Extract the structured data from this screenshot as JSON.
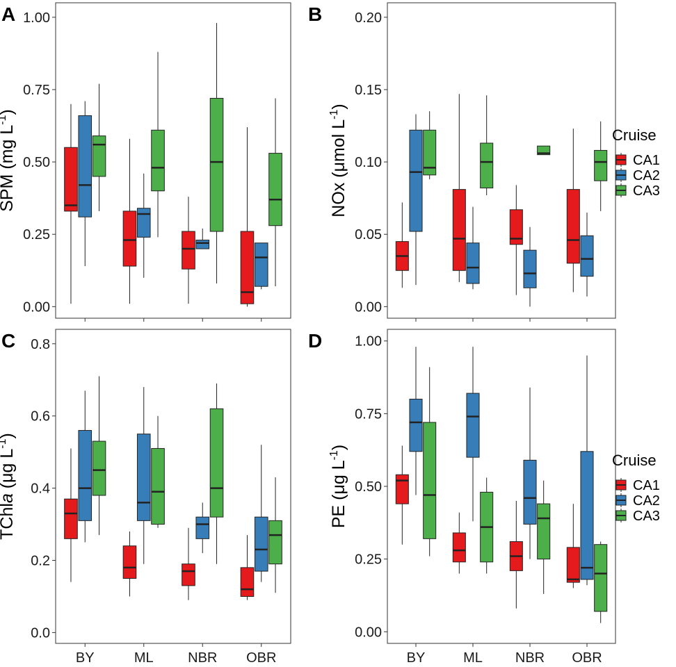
{
  "legend": {
    "title": "Cruise",
    "entries": [
      {
        "name": "CA1",
        "color": "#E41A1C"
      },
      {
        "name": "CA2",
        "color": "#377EB8"
      },
      {
        "name": "CA3",
        "color": "#4DAF4A"
      }
    ]
  },
  "chart_data": [
    {
      "type": "box",
      "panel": "A",
      "ylabel": "SPM (mg L",
      "ylabel_sup": "-1",
      "ylabel_tail": ")",
      "ylim": [
        -0.04,
        1.05
      ],
      "yticks": [
        "0.00",
        "0.25",
        "0.50",
        "0.75",
        "1.00"
      ],
      "categories": [
        "BY",
        "ML",
        "NBR",
        "OBR"
      ],
      "series": [
        {
          "name": "CA1",
          "boxes": [
            {
              "min": 0.01,
              "q1": 0.33,
              "median": 0.35,
              "q3": 0.55,
              "max": 0.7
            },
            {
              "min": 0.01,
              "q1": 0.14,
              "median": 0.23,
              "q3": 0.33,
              "max": 0.58
            },
            {
              "min": 0.01,
              "q1": 0.13,
              "median": 0.2,
              "q3": 0.26,
              "max": 0.38
            },
            {
              "min": 0.0,
              "q1": 0.01,
              "median": 0.05,
              "q3": 0.26,
              "max": 0.62
            }
          ]
        },
        {
          "name": "CA2",
          "boxes": [
            {
              "min": 0.14,
              "q1": 0.31,
              "median": 0.42,
              "q3": 0.66,
              "max": 0.71
            },
            {
              "min": 0.1,
              "q1": 0.24,
              "median": 0.32,
              "q3": 0.34,
              "max": 0.46
            },
            {
              "min": 0.2,
              "q1": 0.2,
              "median": 0.22,
              "q3": 0.23,
              "max": 0.27
            },
            {
              "min": 0.06,
              "q1": 0.07,
              "median": 0.17,
              "q3": 0.22,
              "max": 0.22
            }
          ]
        },
        {
          "name": "CA3",
          "boxes": [
            {
              "min": 0.33,
              "q1": 0.45,
              "median": 0.56,
              "q3": 0.59,
              "max": 0.77
            },
            {
              "min": 0.24,
              "q1": 0.4,
              "median": 0.48,
              "q3": 0.61,
              "max": 0.88
            },
            {
              "min": 0.08,
              "q1": 0.26,
              "median": 0.5,
              "q3": 0.72,
              "max": 0.98
            },
            {
              "min": 0.07,
              "q1": 0.28,
              "median": 0.37,
              "q3": 0.53,
              "max": 0.72
            }
          ]
        }
      ]
    },
    {
      "type": "box",
      "panel": "B",
      "ylabel": "NOx (μmol L",
      "ylabel_sup": "-1",
      "ylabel_tail": ")",
      "ylim": [
        -0.008,
        0.21
      ],
      "yticks": [
        "0.00",
        "0.05",
        "0.10",
        "0.15",
        "0.20"
      ],
      "categories": [
        "BY",
        "ML",
        "NBR",
        "OBR"
      ],
      "series": [
        {
          "name": "CA1",
          "boxes": [
            {
              "min": 0.013,
              "q1": 0.025,
              "median": 0.035,
              "q3": 0.045,
              "max": 0.072
            },
            {
              "min": 0.017,
              "q1": 0.025,
              "median": 0.047,
              "q3": 0.081,
              "max": 0.147
            },
            {
              "min": 0.008,
              "q1": 0.043,
              "median": 0.047,
              "q3": 0.067,
              "max": 0.084
            },
            {
              "min": 0.01,
              "q1": 0.03,
              "median": 0.046,
              "q3": 0.081,
              "max": 0.123
            }
          ]
        },
        {
          "name": "CA2",
          "boxes": [
            {
              "min": 0.015,
              "q1": 0.052,
              "median": 0.093,
              "q3": 0.122,
              "max": 0.133
            },
            {
              "min": 0.012,
              "q1": 0.016,
              "median": 0.027,
              "q3": 0.044,
              "max": 0.069
            },
            {
              "min": 0.0,
              "q1": 0.013,
              "median": 0.023,
              "q3": 0.039,
              "max": 0.055
            },
            {
              "min": 0.007,
              "q1": 0.021,
              "median": 0.033,
              "q3": 0.049,
              "max": 0.065
            }
          ]
        },
        {
          "name": "CA3",
          "boxes": [
            {
              "min": 0.088,
              "q1": 0.091,
              "median": 0.096,
              "q3": 0.122,
              "max": 0.135
            },
            {
              "min": 0.077,
              "q1": 0.082,
              "median": 0.1,
              "q3": 0.113,
              "max": 0.146
            },
            {
              "min": 0.105,
              "q1": 0.105,
              "median": 0.106,
              "q3": 0.111,
              "max": 0.111
            },
            {
              "min": 0.066,
              "q1": 0.087,
              "median": 0.1,
              "q3": 0.108,
              "max": 0.128
            }
          ]
        }
      ]
    },
    {
      "type": "box",
      "panel": "C",
      "ylabel": "TChl",
      "ylabel_italic": "a",
      "ylabel_unit": " (μg L",
      "ylabel_sup": "-1",
      "ylabel_tail": ")",
      "ylim": [
        -0.03,
        0.84
      ],
      "yticks": [
        "0.0",
        "0.2",
        "0.4",
        "0.6",
        "0.8"
      ],
      "categories": [
        "BY",
        "ML",
        "NBR",
        "OBR"
      ],
      "series": [
        {
          "name": "CA1",
          "boxes": [
            {
              "min": 0.14,
              "q1": 0.26,
              "median": 0.33,
              "q3": 0.37,
              "max": 0.51
            },
            {
              "min": 0.1,
              "q1": 0.15,
              "median": 0.18,
              "q3": 0.24,
              "max": 0.28
            },
            {
              "min": 0.09,
              "q1": 0.13,
              "median": 0.17,
              "q3": 0.19,
              "max": 0.29
            },
            {
              "min": 0.09,
              "q1": 0.1,
              "median": 0.12,
              "q3": 0.18,
              "max": 0.27
            }
          ]
        },
        {
          "name": "CA2",
          "boxes": [
            {
              "min": 0.25,
              "q1": 0.31,
              "median": 0.4,
              "q3": 0.56,
              "max": 0.67
            },
            {
              "min": 0.19,
              "q1": 0.31,
              "median": 0.36,
              "q3": 0.55,
              "max": 0.68
            },
            {
              "min": 0.22,
              "q1": 0.26,
              "median": 0.3,
              "q3": 0.32,
              "max": 0.36
            },
            {
              "min": 0.14,
              "q1": 0.17,
              "median": 0.23,
              "q3": 0.32,
              "max": 0.52
            }
          ]
        },
        {
          "name": "CA3",
          "boxes": [
            {
              "min": 0.27,
              "q1": 0.38,
              "median": 0.45,
              "q3": 0.53,
              "max": 0.71
            },
            {
              "min": 0.29,
              "q1": 0.3,
              "median": 0.39,
              "q3": 0.51,
              "max": 0.6
            },
            {
              "min": 0.19,
              "q1": 0.32,
              "median": 0.4,
              "q3": 0.62,
              "max": 0.69
            },
            {
              "min": 0.11,
              "q1": 0.19,
              "median": 0.27,
              "q3": 0.31,
              "max": 0.43
            }
          ]
        }
      ]
    },
    {
      "type": "box",
      "panel": "D",
      "ylabel": "PE (μg L",
      "ylabel_sup": "-1",
      "ylabel_tail": ")",
      "ylim": [
        -0.04,
        1.04
      ],
      "yticks": [
        "0.00",
        "0.25",
        "0.50",
        "0.75",
        "1.00"
      ],
      "xlabels_visible": true,
      "categories": [
        "BY",
        "ML",
        "NBR",
        "OBR"
      ],
      "series": [
        {
          "name": "CA1",
          "boxes": [
            {
              "min": 0.3,
              "q1": 0.44,
              "median": 0.52,
              "q3": 0.54,
              "max": 0.64
            },
            {
              "min": 0.2,
              "q1": 0.24,
              "median": 0.28,
              "q3": 0.34,
              "max": 0.41
            },
            {
              "min": 0.08,
              "q1": 0.21,
              "median": 0.26,
              "q3": 0.31,
              "max": 0.45
            },
            {
              "min": 0.15,
              "q1": 0.17,
              "median": 0.18,
              "q3": 0.29,
              "max": 0.44
            }
          ]
        },
        {
          "name": "CA2",
          "boxes": [
            {
              "min": 0.47,
              "q1": 0.62,
              "median": 0.72,
              "q3": 0.8,
              "max": 0.98
            },
            {
              "min": 0.38,
              "q1": 0.6,
              "median": 0.74,
              "q3": 0.82,
              "max": 0.98
            },
            {
              "min": 0.25,
              "q1": 0.37,
              "median": 0.46,
              "q3": 0.59,
              "max": 0.84
            },
            {
              "min": 0.16,
              "q1": 0.18,
              "median": 0.22,
              "q3": 0.62,
              "max": 0.95
            }
          ]
        },
        {
          "name": "CA3",
          "boxes": [
            {
              "min": 0.26,
              "q1": 0.32,
              "median": 0.47,
              "q3": 0.72,
              "max": 0.91
            },
            {
              "min": 0.2,
              "q1": 0.24,
              "median": 0.36,
              "q3": 0.48,
              "max": 0.53
            },
            {
              "min": 0.13,
              "q1": 0.25,
              "median": 0.39,
              "q3": 0.44,
              "max": 0.52
            },
            {
              "min": 0.03,
              "q1": 0.07,
              "median": 0.2,
              "q3": 0.3,
              "max": 0.31
            }
          ]
        }
      ]
    }
  ]
}
